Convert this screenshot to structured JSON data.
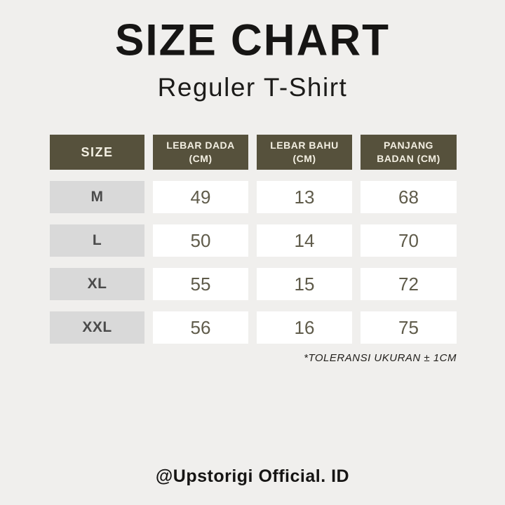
{
  "page": {
    "title": "SIZE CHART",
    "subtitle": "Reguler T-Shirt",
    "note": "*TOLERANSI UKURAN ± 1CM",
    "footer": "@Upstorigi Official. ID"
  },
  "chart_data": {
    "type": "table",
    "title": "SIZE CHART",
    "subtitle": "Reguler T-Shirt",
    "columns": [
      "SIZE",
      "LEBAR DADA (CM)",
      "LEBAR BAHU (CM)",
      "PANJANG BADAN (CM)"
    ],
    "rows": [
      [
        "M",
        49,
        13,
        68
      ],
      [
        "L",
        50,
        14,
        70
      ],
      [
        "XL",
        55,
        15,
        72
      ],
      [
        "XXL",
        56,
        16,
        75
      ]
    ],
    "units": "cm",
    "tolerance_note": "*TOLERANSI UKURAN ± 1CM"
  },
  "colors": {
    "background": "#f0efed",
    "header_bg": "#56513c",
    "header_text": "#f3efe2",
    "size_cell_bg": "#d9d9d9",
    "size_cell_text": "#4a4a4a",
    "value_cell_bg": "#ffffff",
    "value_text": "#5f5b4a",
    "title_text": "#161514"
  }
}
